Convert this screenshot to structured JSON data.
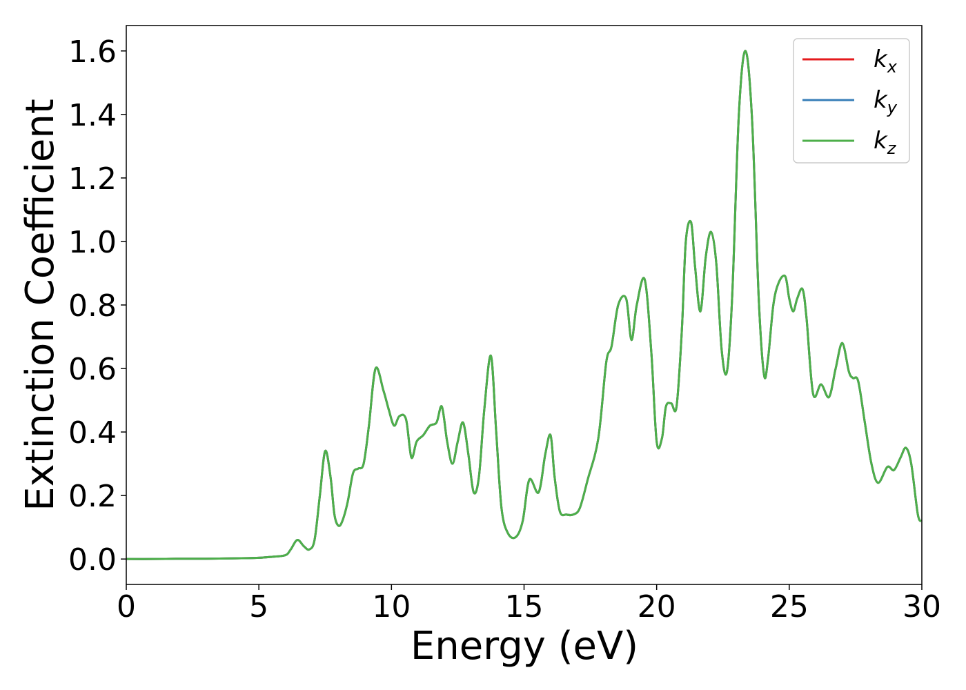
{
  "chart_data": {
    "type": "line",
    "xlabel": "Energy (eV)",
    "ylabel": "Extinction Coefficient",
    "xlim": [
      0,
      30
    ],
    "ylim": [
      -0.08,
      1.68
    ],
    "xticks": [
      0,
      5,
      10,
      15,
      20,
      25,
      30
    ],
    "xtick_labels": [
      "0",
      "5",
      "10",
      "15",
      "20",
      "25",
      "30"
    ],
    "yticks": [
      0.0,
      0.2,
      0.4,
      0.6,
      0.8,
      1.0,
      1.2,
      1.4,
      1.6
    ],
    "ytick_labels": [
      "0.0",
      "0.2",
      "0.4",
      "0.6",
      "0.8",
      "1.0",
      "1.2",
      "1.4",
      "1.6"
    ],
    "grid": false,
    "legend_position": "top-right",
    "x": [
      0,
      1,
      2,
      3,
      4,
      5,
      5.5,
      6.0,
      6.2,
      6.45,
      6.7,
      6.9,
      7.1,
      7.3,
      7.5,
      7.7,
      7.85,
      8.0,
      8.15,
      8.35,
      8.55,
      8.75,
      8.95,
      9.15,
      9.4,
      9.7,
      9.9,
      10.1,
      10.3,
      10.55,
      10.75,
      10.95,
      11.2,
      11.45,
      11.7,
      11.9,
      12.1,
      12.3,
      12.5,
      12.7,
      12.9,
      13.1,
      13.3,
      13.5,
      13.75,
      13.95,
      14.15,
      14.4,
      14.7,
      14.95,
      15.2,
      15.55,
      15.8,
      16.0,
      16.15,
      16.35,
      16.6,
      16.85,
      17.1,
      17.4,
      17.8,
      18.1,
      18.3,
      18.55,
      18.85,
      19.05,
      19.25,
      19.55,
      19.8,
      20.0,
      20.2,
      20.35,
      20.55,
      20.75,
      20.95,
      21.1,
      21.3,
      21.45,
      21.65,
      21.85,
      22.05,
      22.25,
      22.45,
      22.65,
      22.85,
      23.1,
      23.35,
      23.6,
      23.85,
      24.05,
      24.2,
      24.4,
      24.6,
      24.85,
      25.0,
      25.15,
      25.3,
      25.5,
      25.65,
      25.9,
      26.2,
      26.5,
      26.75,
      27.0,
      27.25,
      27.4,
      27.6,
      27.85,
      28.1,
      28.35,
      28.7,
      28.95,
      29.2,
      29.4,
      29.6,
      29.85,
      30
    ],
    "series": [
      {
        "name": "k_x",
        "label_base": "k",
        "label_sub": "x",
        "color": "#e41a1c",
        "values": [
          0.0,
          0.0,
          0.001,
          0.001,
          0.002,
          0.004,
          0.007,
          0.012,
          0.03,
          0.06,
          0.04,
          0.03,
          0.06,
          0.2,
          0.34,
          0.26,
          0.14,
          0.105,
          0.12,
          0.18,
          0.27,
          0.285,
          0.3,
          0.42,
          0.6,
          0.53,
          0.47,
          0.42,
          0.45,
          0.44,
          0.32,
          0.37,
          0.39,
          0.42,
          0.43,
          0.48,
          0.37,
          0.3,
          0.37,
          0.43,
          0.33,
          0.21,
          0.26,
          0.47,
          0.64,
          0.4,
          0.16,
          0.08,
          0.07,
          0.12,
          0.25,
          0.21,
          0.33,
          0.39,
          0.26,
          0.15,
          0.14,
          0.14,
          0.16,
          0.25,
          0.38,
          0.62,
          0.67,
          0.8,
          0.82,
          0.69,
          0.8,
          0.88,
          0.65,
          0.37,
          0.38,
          0.48,
          0.49,
          0.48,
          0.72,
          1.0,
          1.06,
          0.92,
          0.78,
          0.95,
          1.03,
          0.93,
          0.66,
          0.59,
          0.83,
          1.4,
          1.6,
          1.38,
          0.82,
          0.58,
          0.63,
          0.8,
          0.87,
          0.89,
          0.82,
          0.78,
          0.82,
          0.85,
          0.76,
          0.52,
          0.55,
          0.51,
          0.6,
          0.68,
          0.59,
          0.57,
          0.56,
          0.43,
          0.3,
          0.24,
          0.29,
          0.28,
          0.32,
          0.35,
          0.3,
          0.14,
          0.12
        ]
      },
      {
        "name": "k_y",
        "label_base": "k",
        "label_sub": "y",
        "color": "#377eb8",
        "values": [
          0.0,
          0.0,
          0.001,
          0.001,
          0.002,
          0.004,
          0.007,
          0.012,
          0.03,
          0.06,
          0.04,
          0.03,
          0.06,
          0.2,
          0.34,
          0.26,
          0.14,
          0.105,
          0.12,
          0.18,
          0.27,
          0.285,
          0.3,
          0.42,
          0.6,
          0.53,
          0.47,
          0.42,
          0.45,
          0.44,
          0.32,
          0.37,
          0.39,
          0.42,
          0.43,
          0.48,
          0.37,
          0.3,
          0.37,
          0.43,
          0.33,
          0.21,
          0.26,
          0.47,
          0.64,
          0.4,
          0.16,
          0.08,
          0.07,
          0.12,
          0.25,
          0.21,
          0.33,
          0.39,
          0.26,
          0.15,
          0.14,
          0.14,
          0.16,
          0.25,
          0.38,
          0.62,
          0.67,
          0.8,
          0.82,
          0.69,
          0.8,
          0.88,
          0.65,
          0.37,
          0.38,
          0.48,
          0.49,
          0.48,
          0.72,
          1.0,
          1.06,
          0.92,
          0.78,
          0.95,
          1.03,
          0.93,
          0.66,
          0.59,
          0.83,
          1.4,
          1.6,
          1.38,
          0.82,
          0.58,
          0.63,
          0.8,
          0.87,
          0.89,
          0.82,
          0.78,
          0.82,
          0.85,
          0.76,
          0.52,
          0.55,
          0.51,
          0.6,
          0.68,
          0.59,
          0.57,
          0.56,
          0.43,
          0.3,
          0.24,
          0.29,
          0.28,
          0.32,
          0.35,
          0.3,
          0.14,
          0.12
        ]
      },
      {
        "name": "k_z",
        "label_base": "k",
        "label_sub": "z",
        "color": "#4daf4a",
        "values": [
          0.0,
          0.0,
          0.001,
          0.001,
          0.002,
          0.004,
          0.007,
          0.012,
          0.03,
          0.06,
          0.04,
          0.03,
          0.06,
          0.2,
          0.34,
          0.26,
          0.14,
          0.105,
          0.12,
          0.18,
          0.27,
          0.285,
          0.3,
          0.42,
          0.6,
          0.53,
          0.47,
          0.42,
          0.45,
          0.44,
          0.32,
          0.37,
          0.39,
          0.42,
          0.43,
          0.48,
          0.37,
          0.3,
          0.37,
          0.43,
          0.33,
          0.21,
          0.26,
          0.47,
          0.64,
          0.4,
          0.16,
          0.08,
          0.07,
          0.12,
          0.25,
          0.21,
          0.33,
          0.39,
          0.26,
          0.15,
          0.14,
          0.14,
          0.16,
          0.25,
          0.38,
          0.62,
          0.67,
          0.8,
          0.82,
          0.69,
          0.8,
          0.88,
          0.65,
          0.37,
          0.38,
          0.48,
          0.49,
          0.48,
          0.72,
          1.0,
          1.06,
          0.92,
          0.78,
          0.95,
          1.03,
          0.93,
          0.66,
          0.59,
          0.83,
          1.4,
          1.6,
          1.38,
          0.82,
          0.58,
          0.63,
          0.8,
          0.87,
          0.89,
          0.82,
          0.78,
          0.82,
          0.85,
          0.76,
          0.52,
          0.55,
          0.51,
          0.6,
          0.68,
          0.59,
          0.57,
          0.56,
          0.43,
          0.3,
          0.24,
          0.29,
          0.28,
          0.32,
          0.35,
          0.3,
          0.14,
          0.12
        ]
      }
    ]
  }
}
